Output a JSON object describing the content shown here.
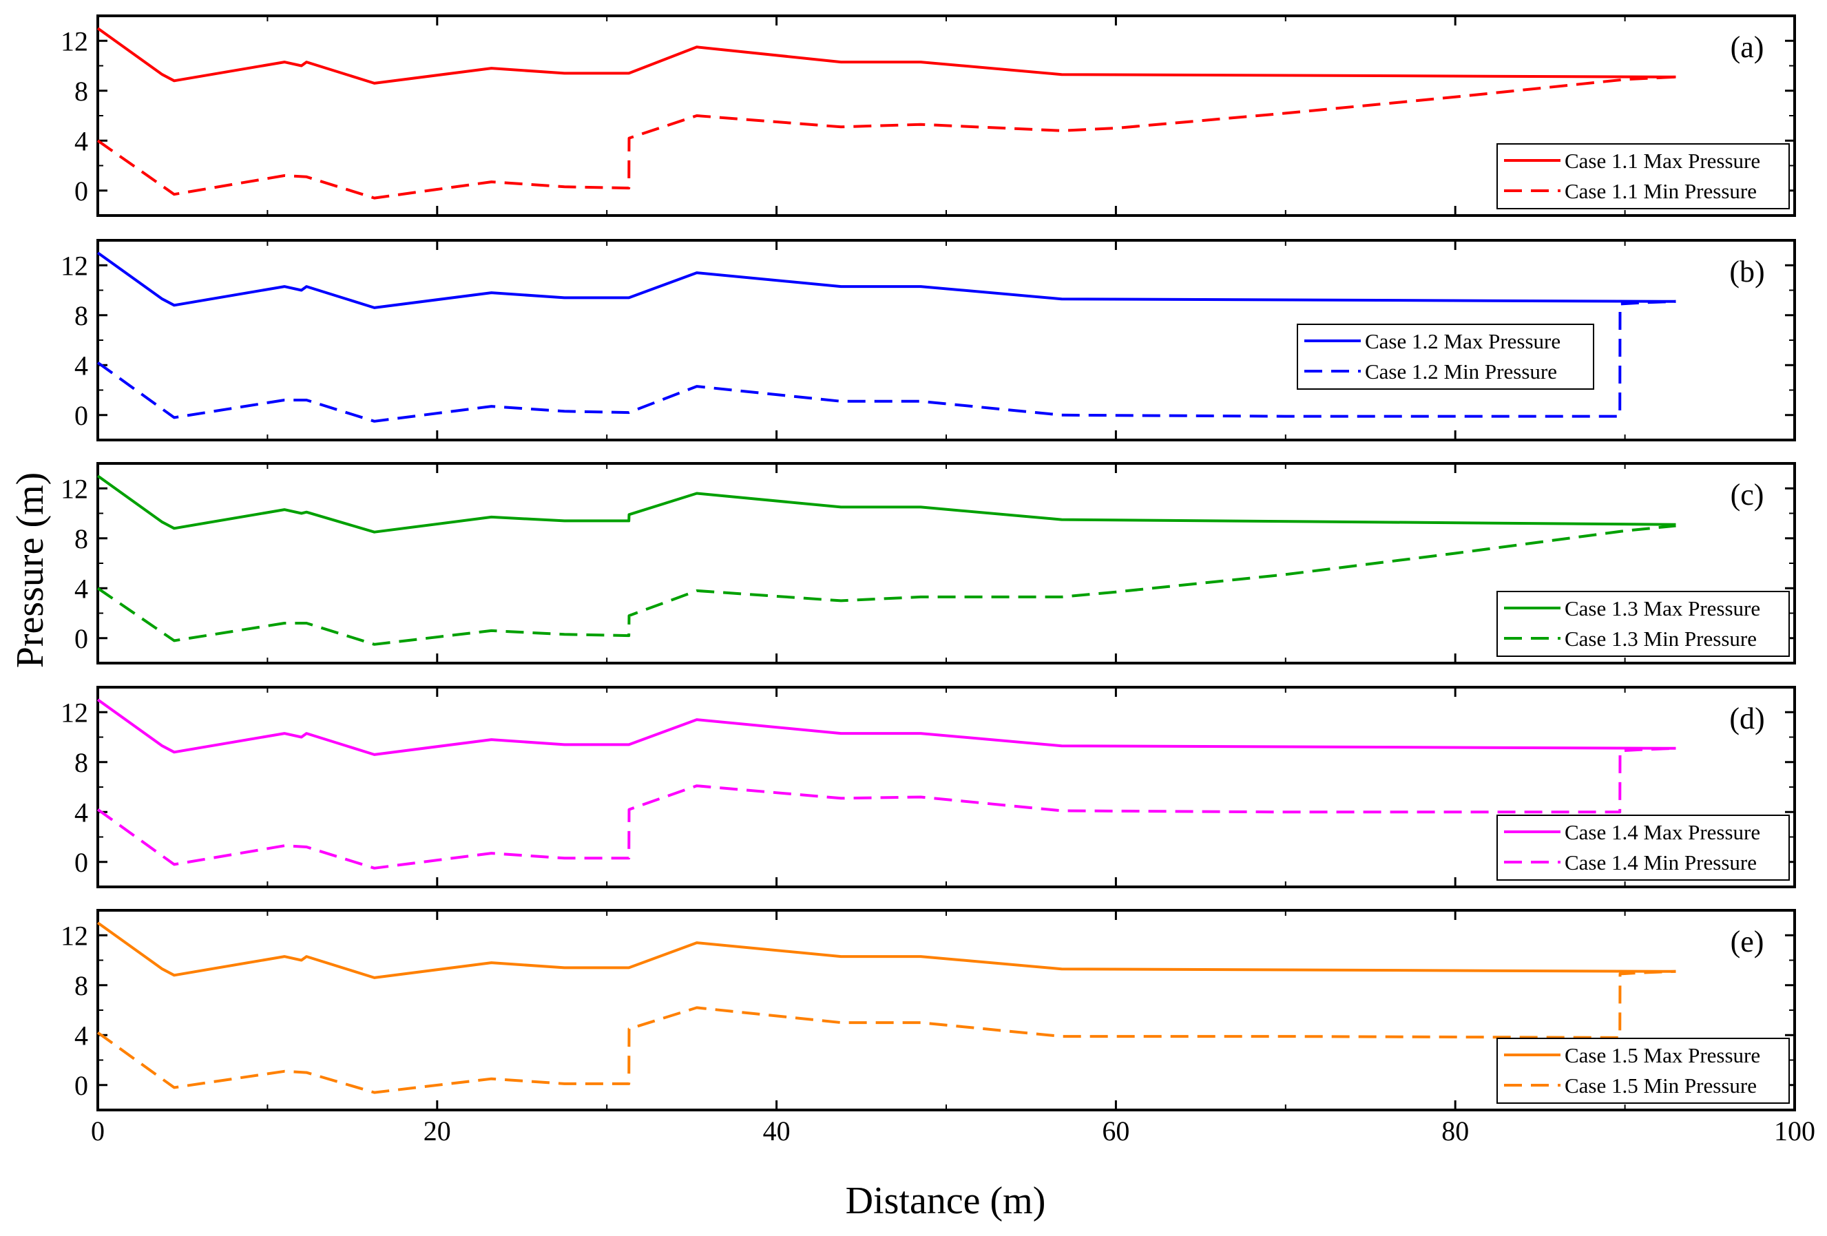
{
  "figure": {
    "x_axis_title": "Distance (m)",
    "y_axis_title": "Pressure (m)"
  },
  "chart_data": [
    {
      "type": "line",
      "panel_label": "(a)",
      "color": "#ff0000",
      "x_ticks": [
        "0",
        "20",
        "40",
        "60",
        "80",
        "100"
      ],
      "y_ticks": [
        "0",
        "4",
        "8",
        "12"
      ],
      "xlim": [
        0,
        100
      ],
      "ylim": [
        -2,
        14
      ],
      "legend_position": "bottom-right",
      "series": [
        {
          "name": "Case 1.1 Max Pressure",
          "style": "solid",
          "x": [
            0,
            3.8,
            4.5,
            11,
            12,
            12.3,
            16.3,
            23.2,
            27.5,
            31.3,
            35.3,
            43.8,
            48.5,
            56.8,
            93
          ],
          "y": [
            13.0,
            9.3,
            8.8,
            10.3,
            10.0,
            10.3,
            8.6,
            9.8,
            9.4,
            9.4,
            11.5,
            10.3,
            10.3,
            9.3,
            9.1
          ]
        },
        {
          "name": "Case 1.1 Min Pressure",
          "style": "dashed",
          "x": [
            0,
            4.5,
            11,
            12.3,
            16.3,
            23.2,
            27.5,
            31.3,
            31.31,
            35.3,
            43.8,
            48.5,
            56.8,
            60,
            70,
            80,
            90,
            93
          ],
          "y": [
            4.0,
            -0.3,
            1.2,
            1.1,
            -0.6,
            0.7,
            0.3,
            0.2,
            4.2,
            6.0,
            5.1,
            5.3,
            4.8,
            5.0,
            6.2,
            7.5,
            8.9,
            9.1
          ]
        }
      ]
    },
    {
      "type": "line",
      "panel_label": "(b)",
      "color": "#0000ff",
      "x_ticks": [
        "0",
        "20",
        "40",
        "60",
        "80",
        "100"
      ],
      "y_ticks": [
        "0",
        "4",
        "8",
        "12"
      ],
      "xlim": [
        0,
        100
      ],
      "ylim": [
        -2,
        14
      ],
      "legend_position": "center-right",
      "series": [
        {
          "name": "Case 1.2 Max Pressure",
          "style": "solid",
          "x": [
            0,
            3.8,
            4.5,
            11,
            12,
            12.3,
            16.3,
            23.2,
            27.5,
            31.3,
            35.3,
            43.8,
            48.5,
            56.8,
            93
          ],
          "y": [
            13.0,
            9.3,
            8.8,
            10.3,
            10.0,
            10.3,
            8.6,
            9.8,
            9.4,
            9.4,
            11.4,
            10.3,
            10.3,
            9.3,
            9.1
          ]
        },
        {
          "name": "Case 1.2 Min Pressure",
          "style": "dashed",
          "x": [
            0,
            4.5,
            11,
            12.3,
            16.3,
            23.2,
            27.5,
            31.3,
            35.3,
            43.8,
            48.5,
            56.8,
            70,
            89.7,
            89.71,
            91,
            93
          ],
          "y": [
            4.2,
            -0.2,
            1.2,
            1.2,
            -0.5,
            0.7,
            0.3,
            0.2,
            2.3,
            1.1,
            1.1,
            0.0,
            -0.1,
            -0.1,
            8.9,
            9.0,
            9.1
          ]
        }
      ]
    },
    {
      "type": "line",
      "panel_label": "(c)",
      "color": "#00a000",
      "x_ticks": [
        "0",
        "20",
        "40",
        "60",
        "80",
        "100"
      ],
      "y_ticks": [
        "0",
        "4",
        "8",
        "12"
      ],
      "xlim": [
        0,
        100
      ],
      "ylim": [
        -2,
        14
      ],
      "legend_position": "bottom-right",
      "series": [
        {
          "name": "Case 1.3 Max Pressure",
          "style": "solid",
          "x": [
            0,
            3.8,
            4.5,
            11,
            12,
            12.3,
            16.3,
            23.2,
            27.5,
            31.3,
            31.31,
            35.3,
            43.8,
            48.5,
            56.8,
            93
          ],
          "y": [
            13.0,
            9.3,
            8.8,
            10.3,
            10.0,
            10.1,
            8.5,
            9.7,
            9.4,
            9.4,
            9.9,
            11.6,
            10.5,
            10.5,
            9.5,
            9.1
          ]
        },
        {
          "name": "Case 1.3 Min Pressure",
          "style": "dashed",
          "x": [
            0,
            4.5,
            11,
            12.3,
            16.3,
            23.2,
            27.5,
            31.3,
            31.31,
            35.3,
            43.8,
            48.5,
            56.8,
            60,
            70,
            80,
            90,
            93
          ],
          "y": [
            4.0,
            -0.2,
            1.2,
            1.2,
            -0.5,
            0.6,
            0.3,
            0.2,
            1.8,
            3.8,
            3.0,
            3.3,
            3.3,
            3.7,
            5.1,
            6.8,
            8.6,
            9.0
          ]
        }
      ]
    },
    {
      "type": "line",
      "panel_label": "(d)",
      "color": "#ff00ff",
      "x_ticks": [
        "0",
        "20",
        "40",
        "60",
        "80",
        "100"
      ],
      "y_ticks": [
        "0",
        "4",
        "8",
        "12"
      ],
      "xlim": [
        0,
        100
      ],
      "ylim": [
        -2,
        14
      ],
      "legend_position": "bottom-right",
      "series": [
        {
          "name": "Case 1.4 Max Pressure",
          "style": "solid",
          "x": [
            0,
            3.8,
            4.5,
            11,
            12,
            12.3,
            16.3,
            23.2,
            27.5,
            31.3,
            35.3,
            43.8,
            48.5,
            56.8,
            93
          ],
          "y": [
            13.0,
            9.3,
            8.8,
            10.3,
            10.0,
            10.3,
            8.6,
            9.8,
            9.4,
            9.4,
            11.4,
            10.3,
            10.3,
            9.3,
            9.1
          ]
        },
        {
          "name": "Case 1.4 Min Pressure",
          "style": "dashed",
          "x": [
            0,
            4.5,
            11,
            12.3,
            16.3,
            23.2,
            27.5,
            31.3,
            31.31,
            35.3,
            43.8,
            48.5,
            56.8,
            70,
            89.7,
            89.71,
            91,
            93
          ],
          "y": [
            4.2,
            -0.2,
            1.3,
            1.2,
            -0.5,
            0.7,
            0.3,
            0.3,
            4.2,
            6.1,
            5.1,
            5.2,
            4.1,
            4.0,
            4.0,
            8.9,
            9.0,
            9.1
          ]
        }
      ]
    },
    {
      "type": "line",
      "panel_label": "(e)",
      "color": "#ff8000",
      "x_ticks": [
        "0",
        "20",
        "40",
        "60",
        "80",
        "100"
      ],
      "y_ticks": [
        "0",
        "4",
        "8",
        "12"
      ],
      "xlim": [
        0,
        100
      ],
      "ylim": [
        -2,
        14
      ],
      "legend_position": "bottom-right",
      "series": [
        {
          "name": "Case 1.5 Max Pressure",
          "style": "solid",
          "x": [
            0,
            3.8,
            4.5,
            11,
            12,
            12.3,
            16.3,
            23.2,
            27.5,
            31.3,
            35.3,
            43.8,
            48.5,
            56.8,
            93
          ],
          "y": [
            13.0,
            9.3,
            8.8,
            10.3,
            10.0,
            10.3,
            8.6,
            9.8,
            9.4,
            9.4,
            11.4,
            10.3,
            10.3,
            9.3,
            9.1
          ]
        },
        {
          "name": "Case 1.5 Min Pressure",
          "style": "dashed",
          "x": [
            0,
            4.5,
            11,
            12.3,
            16.3,
            23.2,
            27.5,
            31.3,
            31.31,
            35.3,
            43.8,
            48.5,
            56.8,
            70,
            89.7,
            89.71,
            91,
            93
          ],
          "y": [
            4.2,
            -0.2,
            1.1,
            1.0,
            -0.6,
            0.5,
            0.1,
            0.1,
            4.5,
            6.2,
            5.0,
            5.0,
            3.9,
            3.9,
            3.8,
            8.9,
            9.0,
            9.1
          ]
        }
      ]
    }
  ]
}
